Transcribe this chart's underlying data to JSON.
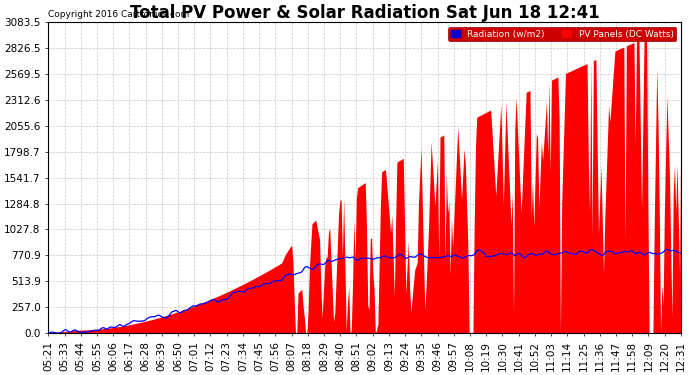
{
  "title": "Total PV Power & Solar Radiation Sat Jun 18 12:41",
  "copyright": "Copyright 2016 Cartronics.com",
  "background_color": "#ffffff",
  "plot_bg_color": "#ffffff",
  "yticks": [
    0.0,
    257.0,
    513.9,
    770.9,
    1027.8,
    1284.8,
    1541.7,
    1798.7,
    2055.6,
    2312.6,
    2569.5,
    2826.5,
    3083.5
  ],
  "ymax": 3083.5,
  "ymin": 0.0,
  "legend_radiation_label": "Radiation (w/m2)",
  "legend_pv_label": "PV Panels (DC Watts)",
  "radiation_color": "#0000ff",
  "pv_fill_color": "#ff0000",
  "grid_color": "#c8c8c8",
  "title_fontsize": 12,
  "axis_fontsize": 7.5,
  "xtick_labels": [
    "05:21",
    "05:33",
    "05:44",
    "05:55",
    "06:06",
    "06:17",
    "06:28",
    "06:39",
    "06:50",
    "07:01",
    "07:12",
    "07:23",
    "07:34",
    "07:45",
    "07:56",
    "08:07",
    "08:18",
    "08:29",
    "08:40",
    "08:51",
    "09:02",
    "09:13",
    "09:24",
    "09:35",
    "09:46",
    "09:57",
    "10:08",
    "10:19",
    "10:30",
    "10:41",
    "10:52",
    "11:03",
    "11:14",
    "11:25",
    "11:36",
    "11:47",
    "11:58",
    "12:09",
    "12:20",
    "12:31"
  ]
}
